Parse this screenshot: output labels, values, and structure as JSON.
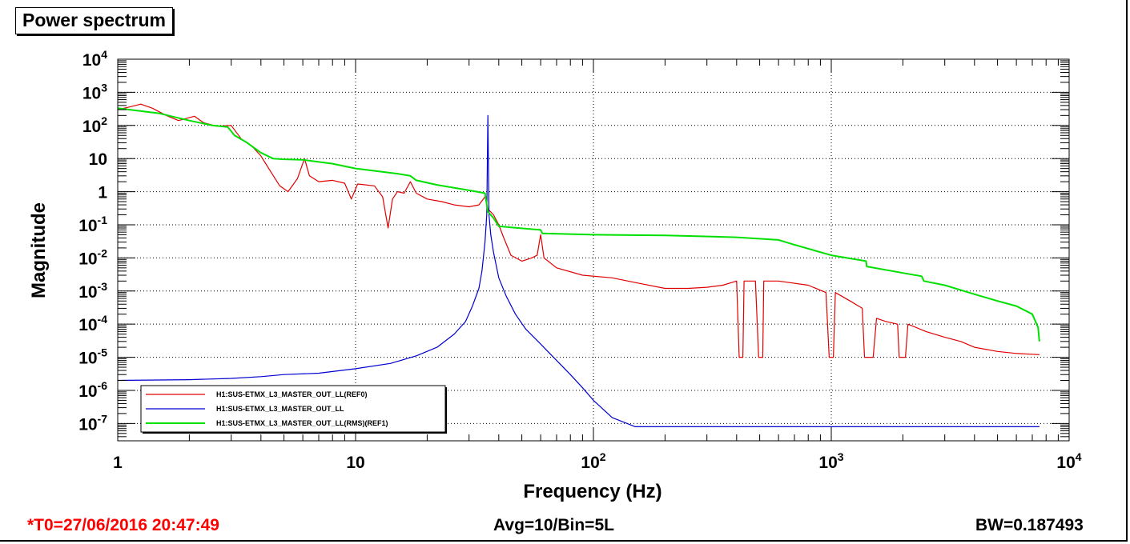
{
  "chart_data": {
    "type": "line",
    "title": "Power spectrum",
    "xlabel": "Frequency (Hz)",
    "ylabel": "Magnitude",
    "xscale": "log",
    "yscale": "log",
    "xlim": [
      1,
      10000
    ],
    "ylim": [
      3e-08,
      10000
    ],
    "grid": true,
    "legend_position": "bottom-left",
    "x_ticks": [
      {
        "base": "1",
        "exp": ""
      },
      {
        "base": "10",
        "exp": ""
      },
      {
        "base": "10",
        "exp": "2"
      },
      {
        "base": "10",
        "exp": "3"
      },
      {
        "base": "10",
        "exp": "4"
      }
    ],
    "y_ticks": [
      {
        "base": "10",
        "exp": "4"
      },
      {
        "base": "10",
        "exp": "3"
      },
      {
        "base": "10",
        "exp": "2"
      },
      {
        "base": "10",
        "exp": ""
      },
      {
        "base": "1",
        "exp": ""
      },
      {
        "base": "10",
        "exp": "-1"
      },
      {
        "base": "10",
        "exp": "-2"
      },
      {
        "base": "10",
        "exp": "-3"
      },
      {
        "base": "10",
        "exp": "-4"
      },
      {
        "base": "10",
        "exp": "-5"
      },
      {
        "base": "10",
        "exp": "-6"
      },
      {
        "base": "10",
        "exp": "-7"
      }
    ],
    "series": [
      {
        "name": "H1:SUS-ETMX_L3_MASTER_OUT_LL(REF0)",
        "color": "#e00000",
        "points": [
          [
            1,
            300
          ],
          [
            1.1,
            350
          ],
          [
            1.25,
            440
          ],
          [
            1.4,
            330
          ],
          [
            1.6,
            200
          ],
          [
            1.8,
            140
          ],
          [
            2.1,
            190
          ],
          [
            2.3,
            120
          ],
          [
            2.6,
            95
          ],
          [
            3,
            100
          ],
          [
            3.3,
            40
          ],
          [
            3.7,
            22
          ],
          [
            4,
            12
          ],
          [
            4.4,
            4
          ],
          [
            4.8,
            1.5
          ],
          [
            5.2,
            1.0
          ],
          [
            5.7,
            2.5
          ],
          [
            6.1,
            10
          ],
          [
            6.4,
            3
          ],
          [
            7,
            2
          ],
          [
            8,
            2.2
          ],
          [
            9,
            1.8
          ],
          [
            9.6,
            0.6
          ],
          [
            10.2,
            1.7
          ],
          [
            12,
            1.5
          ],
          [
            13,
            0.7
          ],
          [
            13.7,
            0.08
          ],
          [
            14.3,
            0.6
          ],
          [
            15,
            1.0
          ],
          [
            16,
            0.9
          ],
          [
            17,
            2.0
          ],
          [
            18,
            0.9
          ],
          [
            20,
            0.6
          ],
          [
            23,
            0.5
          ],
          [
            26,
            0.4
          ],
          [
            30,
            0.35
          ],
          [
            33,
            0.4
          ],
          [
            35,
            0.7
          ],
          [
            36,
            0.3
          ],
          [
            38,
            0.2
          ],
          [
            40,
            0.1
          ],
          [
            42,
            0.04
          ],
          [
            45,
            0.012
          ],
          [
            50,
            0.008
          ],
          [
            55,
            0.01
          ],
          [
            58,
            0.012
          ],
          [
            60,
            0.05
          ],
          [
            62,
            0.01
          ],
          [
            70,
            0.005
          ],
          [
            90,
            0.003
          ],
          [
            120,
            0.0025
          ],
          [
            150,
            0.0018
          ],
          [
            200,
            0.0012
          ],
          [
            250,
            0.0012
          ],
          [
            300,
            0.0013
          ],
          [
            350,
            0.0015
          ],
          [
            400,
            0.002
          ],
          [
            410,
            1e-05
          ],
          [
            425,
            1e-05
          ],
          [
            430,
            0.002
          ],
          [
            480,
            0.002
          ],
          [
            495,
            1e-05
          ],
          [
            515,
            1e-05
          ],
          [
            520,
            0.002
          ],
          [
            600,
            0.002
          ],
          [
            800,
            0.0015
          ],
          [
            950,
            0.0009
          ],
          [
            980,
            1e-05
          ],
          [
            1020,
            1e-05
          ],
          [
            1040,
            0.0009
          ],
          [
            1200,
            0.0005
          ],
          [
            1350,
            0.0003
          ],
          [
            1380,
            1e-05
          ],
          [
            1500,
            1e-05
          ],
          [
            1550,
            0.00015
          ],
          [
            1700,
            0.00012
          ],
          [
            1900,
            0.0001
          ],
          [
            1930,
            1e-05
          ],
          [
            2050,
            1e-05
          ],
          [
            2100,
            0.0001
          ],
          [
            2500,
            6e-05
          ],
          [
            3000,
            4e-05
          ],
          [
            3500,
            3e-05
          ],
          [
            4000,
            2e-05
          ],
          [
            5000,
            1.5e-05
          ],
          [
            6000,
            1.3e-05
          ],
          [
            7500,
            1.2e-05
          ]
        ]
      },
      {
        "name": "H1:SUS-ETMX_L3_MASTER_OUT_LL",
        "color": "#0000d0",
        "points": [
          [
            1,
            2e-06
          ],
          [
            2,
            2.1e-06
          ],
          [
            3,
            2.3e-06
          ],
          [
            4,
            2.6e-06
          ],
          [
            5,
            3e-06
          ],
          [
            7,
            3.3e-06
          ],
          [
            10,
            4.5e-06
          ],
          [
            14,
            6.5e-06
          ],
          [
            18,
            1.1e-05
          ],
          [
            22,
            2e-05
          ],
          [
            26,
            5e-05
          ],
          [
            29,
            0.00012
          ],
          [
            31,
            0.00035
          ],
          [
            33,
            0.0012
          ],
          [
            34,
            0.004
          ],
          [
            35,
            0.03
          ],
          [
            35.6,
            0.2
          ],
          [
            36,
            200
          ],
          [
            36.4,
            0.2
          ],
          [
            37,
            0.05
          ],
          [
            38,
            0.015
          ],
          [
            40,
            0.0025
          ],
          [
            43,
            0.0007
          ],
          [
            47,
            0.0002
          ],
          [
            52,
            7e-05
          ],
          [
            60,
            2.5e-05
          ],
          [
            70,
            8e-06
          ],
          [
            80,
            3e-06
          ],
          [
            90,
            1.2e-06
          ],
          [
            100,
            5e-07
          ],
          [
            120,
            1.5e-07
          ],
          [
            150,
            8e-08
          ],
          [
            300,
            8e-08
          ],
          [
            1000,
            8e-08
          ],
          [
            3000,
            8e-08
          ],
          [
            7500,
            8e-08
          ]
        ]
      },
      {
        "name": "H1:SUS-ETMX_L3_MASTER_OUT_LL(RMS)(REF1)",
        "color": "#00e000",
        "points": [
          [
            1,
            330
          ],
          [
            1.5,
            230
          ],
          [
            2,
            140
          ],
          [
            2.5,
            100
          ],
          [
            2.9,
            90
          ],
          [
            3.1,
            50
          ],
          [
            3.5,
            30
          ],
          [
            4,
            15
          ],
          [
            4.5,
            10
          ],
          [
            5,
            9.5
          ],
          [
            6,
            9.2
          ],
          [
            8,
            7
          ],
          [
            10,
            5
          ],
          [
            15,
            3.5
          ],
          [
            17,
            3
          ],
          [
            18,
            2.2
          ],
          [
            22,
            1.6
          ],
          [
            30,
            1.1
          ],
          [
            35,
            0.9
          ],
          [
            36,
            0.25
          ],
          [
            38,
            0.16
          ],
          [
            40,
            0.09
          ],
          [
            60,
            0.07
          ],
          [
            61,
            0.055
          ],
          [
            100,
            0.05
          ],
          [
            200,
            0.048
          ],
          [
            400,
            0.042
          ],
          [
            600,
            0.035
          ],
          [
            700,
            0.025
          ],
          [
            1000,
            0.012
          ],
          [
            1400,
            0.008
          ],
          [
            1410,
            0.0055
          ],
          [
            2000,
            0.0035
          ],
          [
            2400,
            0.0028
          ],
          [
            2450,
            0.002
          ],
          [
            3000,
            0.0015
          ],
          [
            4000,
            0.0008
          ],
          [
            5000,
            0.0005
          ],
          [
            6000,
            0.00035
          ],
          [
            7000,
            0.0002
          ],
          [
            7400,
            8e-05
          ],
          [
            7500,
            3e-05
          ]
        ]
      }
    ]
  },
  "footer": {
    "t0": "*T0=27/06/2016 20:47:49",
    "avg": "Avg=10/Bin=5L",
    "bw": "BW=0.187493"
  }
}
